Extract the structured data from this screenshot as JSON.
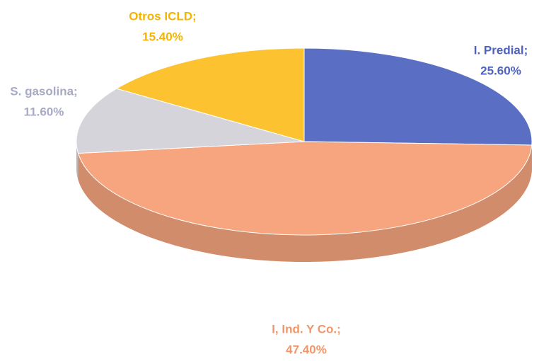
{
  "chart_data": {
    "type": "pie",
    "categories": [
      "I. Predial;",
      "I, Ind. Y Co.;",
      "S. gasolina;",
      "Otros ICLD;"
    ],
    "values": [
      25.6,
      47.4,
      11.6,
      15.4
    ],
    "value_labels": [
      "25.60%",
      "47.40%",
      "11.60%",
      "15.40%"
    ],
    "colors": [
      "#5a6fc3",
      "#f6a57e",
      "#d4d4da",
      "#fdc22f"
    ],
    "label_colors": [
      "#4d62c0",
      "#f0966a",
      "#a8aac6",
      "#f4b400"
    ]
  }
}
